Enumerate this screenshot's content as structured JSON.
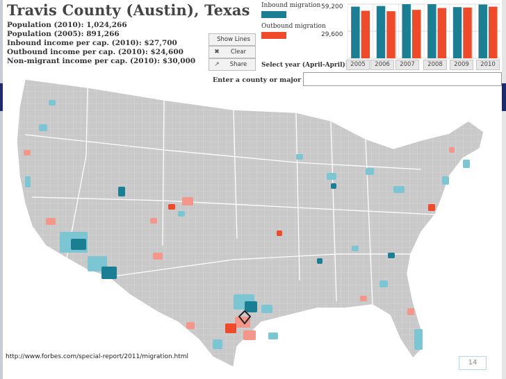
{
  "header": {
    "title": "Travis County (Austin), Texas",
    "stats": [
      "Population (2010): 1,024,266",
      "Population (2005): 891,266",
      "Inbound income per cap. (2010): $27,700",
      "Outbound income per cap. (2010): $24,600",
      "Non-migrant income per cap. (2010): $30,000"
    ]
  },
  "buttons": {
    "show_lines": "Show Lines",
    "clear": "Clear",
    "share": "Share",
    "clear_icon": "✖",
    "share_icon": "↗"
  },
  "legend": {
    "inbound_label": "Inbound migration",
    "outbound_label": "Outbound migration",
    "inbound_color": "#1a7f92",
    "outbound_color": "#ef4a2a",
    "scale_top": "59,200",
    "scale_mid": "29,600"
  },
  "chart_data": {
    "type": "bar",
    "categories": [
      "2005",
      "2006",
      "2007",
      "2008",
      "2009",
      "2010"
    ],
    "series": [
      {
        "name": "Inbound migration",
        "values": [
          56500,
          57200,
          59200,
          59200,
          56000,
          58800
        ]
      },
      {
        "name": "Outbound migration",
        "values": [
          52000,
          51500,
          53000,
          55000,
          55500,
          56500
        ]
      }
    ],
    "ylim": [
      0,
      59200
    ],
    "colors": [
      "#1a7f92",
      "#ef4a2a"
    ]
  },
  "year_selector": {
    "label": "Select year (April-April):",
    "years": [
      "2005",
      "2006",
      "2007",
      "2008",
      "2009",
      "2010"
    ]
  },
  "search": {
    "label": "Enter a county or major city:",
    "value": ""
  },
  "map": {
    "land_color": "#c9c9c9",
    "border_color": "#ffffff",
    "inbound_light": "#7cc6d3",
    "inbound_dark": "#1a7f92",
    "outbound_light": "#f4968a",
    "outbound_dark": "#ef4a2a"
  },
  "footer": {
    "url": "http://www.forbes.com/special-report/2011/migration.html",
    "page_number": "14"
  }
}
